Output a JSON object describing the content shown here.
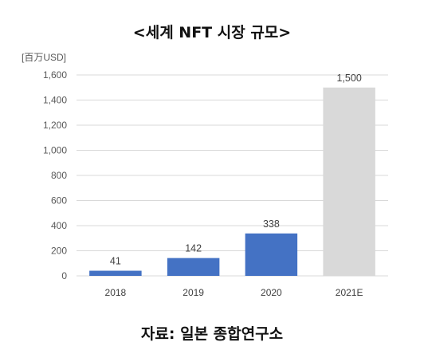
{
  "title": "<세계 NFT 시장 규모>",
  "source": "자료: 일본 종합연구소",
  "chart_data": {
    "type": "bar",
    "unit_label": "[百万USD]",
    "categories": [
      "2018",
      "2019",
      "2020",
      "2021E"
    ],
    "values": [
      41,
      142,
      338,
      1500
    ],
    "data_labels": [
      "41",
      "142",
      "338",
      "1,500"
    ],
    "bar_colors": [
      "#4472C4",
      "#4472C4",
      "#4472C4",
      "#D9D9D9"
    ],
    "ylim": [
      0,
      1600
    ],
    "yticks": [
      0,
      200,
      400,
      600,
      800,
      1000,
      1200,
      1400,
      1600
    ],
    "ytick_labels": [
      "0",
      "200",
      "400",
      "600",
      "800",
      "1,000",
      "1,200",
      "1,400",
      "1,600"
    ],
    "grid": true,
    "grid_color": "#D9D9D9"
  }
}
